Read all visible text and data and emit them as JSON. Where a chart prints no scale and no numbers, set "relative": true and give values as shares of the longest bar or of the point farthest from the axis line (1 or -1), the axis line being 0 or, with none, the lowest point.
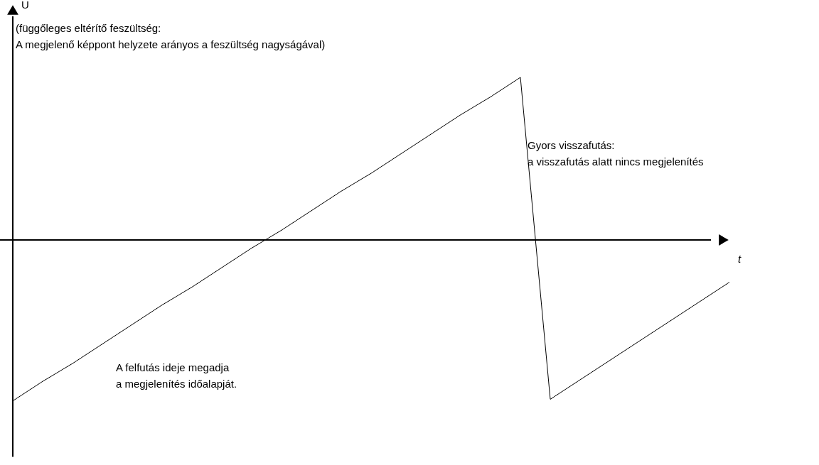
{
  "chart_data": {
    "type": "line",
    "relative": true,
    "xlabel": "t",
    "categories": [
      null,
      null,
      null,
      null,
      null,
      null,
      null,
      null,
      null,
      null,
      null,
      null,
      null,
      null,
      null,
      null,
      null,
      null,
      null,
      null,
      null,
      null,
      null,
      null,
      null
    ],
    "series": [
      {
        "color": "#000000",
        "values": [
          -0.99,
          -0.87,
          -0.76,
          -0.64,
          -0.52,
          -0.4,
          -0.29,
          -0.17,
          -0.05,
          0.06,
          0.18,
          0.3,
          0.41,
          0.53,
          0.65,
          0.77,
          0.88,
          1.0,
          -0.98,
          -0.86,
          -0.74,
          -0.62,
          -0.5,
          -0.38,
          -0.26
        ]
      }
    ],
    "annotations": [
      "U",
      "(függőleges eltérítő feszültség:\nA megjelenő képpont helyzete arányos a feszültség nagyságával)",
      "Gyors visszafutás:\na visszafutás alatt nincs megjelenítés",
      "A felfutás ideje megadja\na megjelenítés időalapját."
    ]
  }
}
